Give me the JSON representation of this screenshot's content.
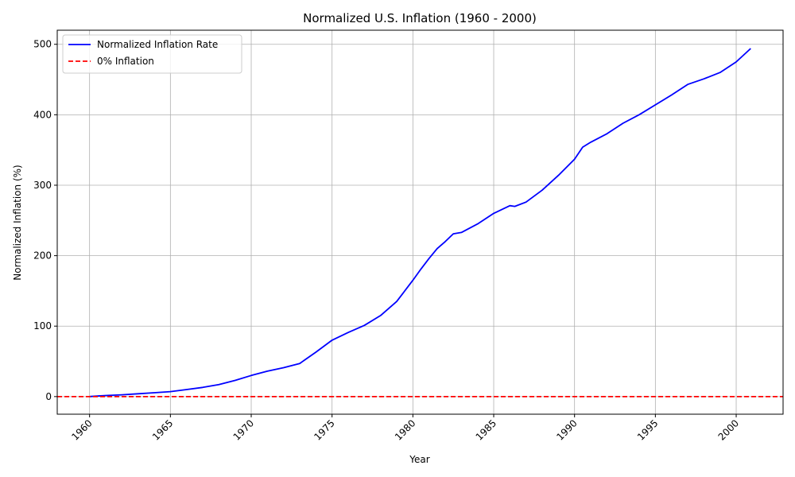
{
  "chart_data": {
    "type": "line",
    "title": "Normalized U.S. Inflation (1960 - 2000)",
    "xlabel": "Year",
    "ylabel": "Normalized Inflation (%)",
    "xlim": [
      1958.0,
      2002.9
    ],
    "ylim": [
      -25,
      520
    ],
    "xticks": [
      1960,
      1965,
      1970,
      1975,
      1980,
      1985,
      1990,
      1995,
      2000
    ],
    "yticks": [
      0,
      100,
      200,
      300,
      400,
      500
    ],
    "grid": true,
    "legend_position": "top-left",
    "series": [
      {
        "name": "Normalized Inflation Rate",
        "color": "#0000ff",
        "style": "solid",
        "x": [
          1960,
          1961,
          1962,
          1963,
          1964,
          1965,
          1966,
          1967,
          1968,
          1969,
          1970,
          1971,
          1972,
          1973,
          1974,
          1975,
          1976,
          1977,
          1978,
          1979,
          1980,
          1980.5,
          1981,
          1981.5,
          1982,
          1982.5,
          1983,
          1984,
          1985,
          1986,
          1986.3,
          1987,
          1988,
          1989,
          1990,
          1990.5,
          1991,
          1992,
          1993,
          1994,
          1995,
          1996,
          1997,
          1998,
          1999,
          2000,
          2000.9
        ],
        "y": [
          0,
          1.5,
          2.5,
          4,
          5.5,
          7,
          10,
          13,
          17,
          23,
          30,
          36,
          41,
          47,
          63,
          80,
          91,
          101,
          115,
          135,
          165,
          181,
          196,
          210,
          220,
          231,
          233,
          245,
          260,
          271,
          270,
          276,
          293,
          314,
          337,
          354,
          361,
          373,
          388,
          400,
          414,
          428,
          443,
          451,
          460,
          475,
          494
        ]
      },
      {
        "name": "0% Inflation",
        "color": "#ff0000",
        "style": "dashed",
        "y_constant": 0
      }
    ]
  }
}
